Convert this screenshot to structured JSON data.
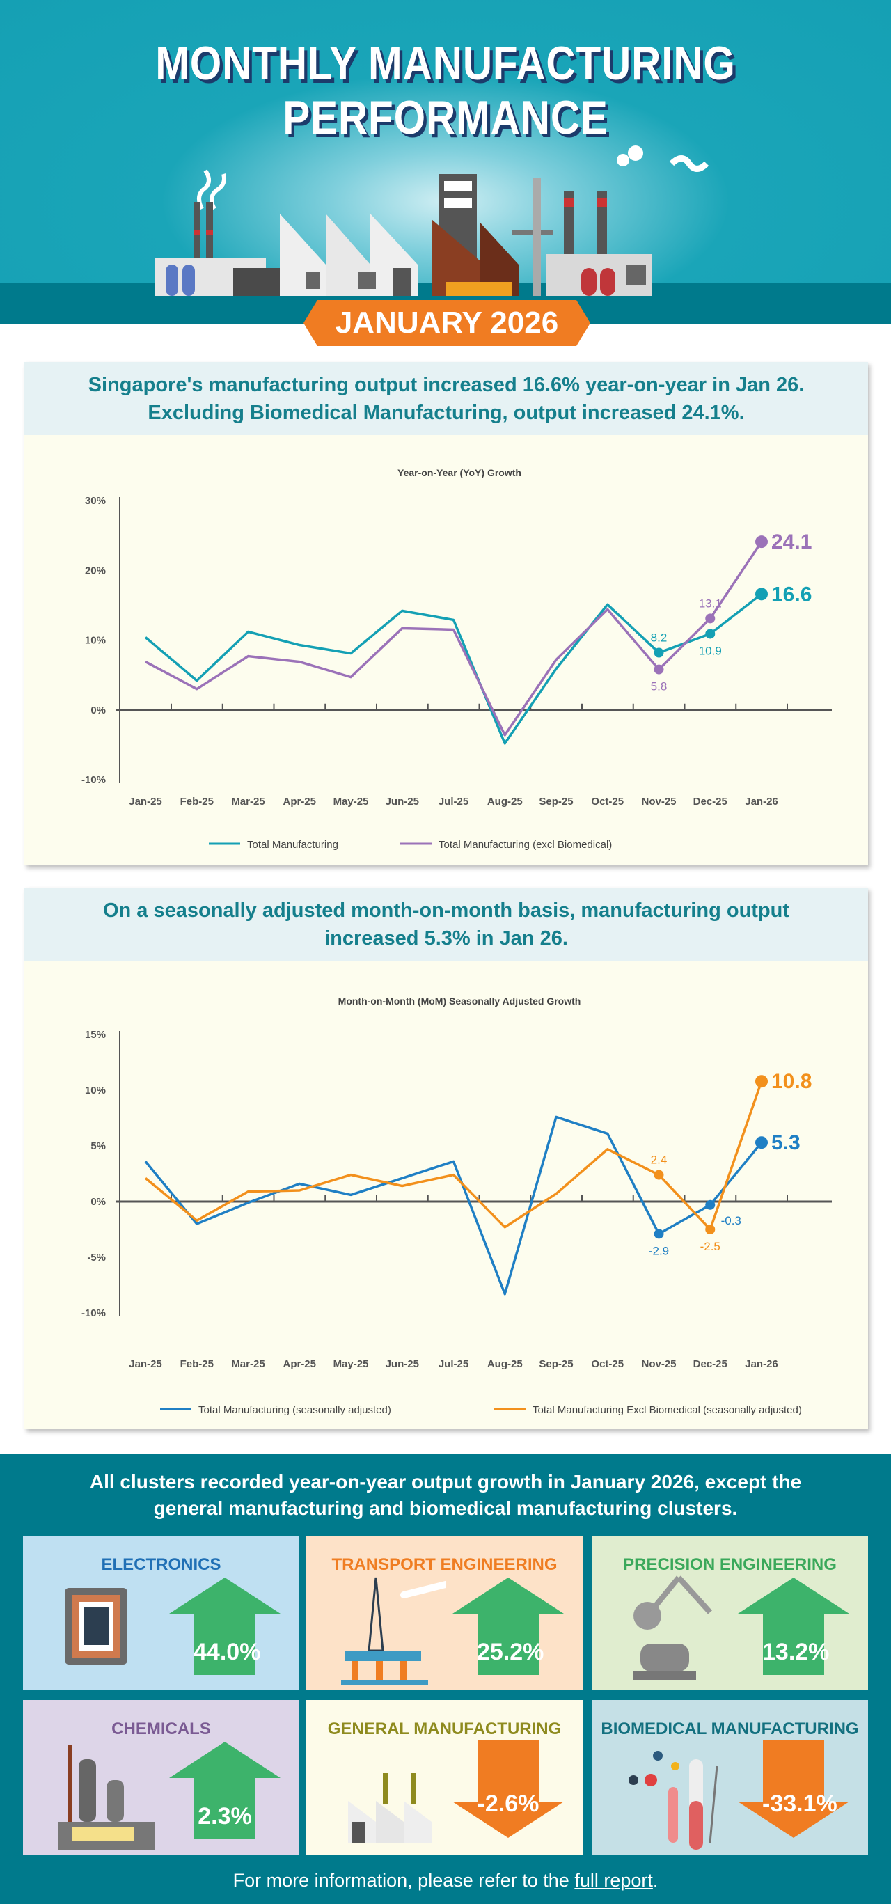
{
  "header": {
    "title_line1": "MONTHLY MANUFACTURING",
    "title_line2": "PERFORMANCE",
    "date_badge": "JANUARY 2026"
  },
  "panel1": {
    "headline1": "Singapore's manufacturing output increased 16.6% year-on-year in Jan 26.",
    "headline2": "Excluding Biomedical Manufacturing, output increased 24.1%."
  },
  "panel2": {
    "headline1": "On a seasonally adjusted month-on-month basis, manufacturing output",
    "headline2": "increased 5.3% in Jan 26."
  },
  "chart_data": [
    {
      "type": "line",
      "title": "Year-on-Year (YoY) Growth",
      "xlabel": "",
      "ylabel": "",
      "categories": [
        "Jan-25",
        "Feb-25",
        "Mar-25",
        "Apr-25",
        "May-25",
        "Jun-25",
        "Jul-25",
        "Aug-25",
        "Sep-25",
        "Oct-25",
        "Nov-25",
        "Dec-25",
        "Jan-26"
      ],
      "ylim": [
        -10,
        30
      ],
      "yticks": [
        30,
        20,
        10,
        0,
        -10
      ],
      "ytick_labels": [
        "30%",
        "20%",
        "10%",
        "0%",
        "-10%"
      ],
      "legend": "bottom",
      "grid": false,
      "series": [
        {
          "name": "Total Manufacturing",
          "color": "#14a0b4",
          "values": [
            10.4,
            4.2,
            11.2,
            9.3,
            8.1,
            14.2,
            12.9,
            -4.8,
            5.9,
            15.1,
            8.2,
            10.9,
            16.6
          ],
          "labels": {
            "10": "8.2",
            "11": "10.9",
            "12": "16.6"
          }
        },
        {
          "name": "Total Manufacturing (excl Biomedical)",
          "color": "#9b72b8",
          "values": [
            6.9,
            3.0,
            7.7,
            6.9,
            4.7,
            11.7,
            11.5,
            -3.6,
            7.2,
            14.4,
            5.8,
            13.1,
            24.1
          ],
          "labels": {
            "10": "5.8",
            "11": "13.1",
            "12": "24.1"
          }
        }
      ]
    },
    {
      "type": "line",
      "title": "Month-on-Month (MoM) Seasonally Adjusted Growth",
      "xlabel": "",
      "ylabel": "",
      "categories": [
        "Jan-25",
        "Feb-25",
        "Mar-25",
        "Apr-25",
        "May-25",
        "Jun-25",
        "Jul-25",
        "Aug-25",
        "Sep-25",
        "Oct-25",
        "Nov-25",
        "Dec-25",
        "Jan-26"
      ],
      "ylim": [
        -10,
        15
      ],
      "yticks": [
        15,
        10,
        5,
        0,
        -5,
        -10
      ],
      "ytick_labels": [
        "15%",
        "10%",
        "5%",
        "0%",
        "-5%",
        "-10%"
      ],
      "legend": "bottom",
      "grid": false,
      "series": [
        {
          "name": "Total Manufacturing (seasonally adjusted)",
          "color": "#1f7fc4",
          "values": [
            3.6,
            -2.0,
            -0.1,
            1.6,
            0.6,
            2.1,
            3.6,
            -8.3,
            7.6,
            6.1,
            -2.9,
            -0.3,
            5.3
          ],
          "labels": {
            "10": "-2.9",
            "11": "-0.3",
            "12": "5.3"
          }
        },
        {
          "name": "Total Manufacturing Excl Biomedical (seasonally adjusted)",
          "color": "#f2901c",
          "values": [
            2.1,
            -1.7,
            0.9,
            1.0,
            2.4,
            1.4,
            2.4,
            -2.3,
            0.7,
            4.7,
            2.4,
            -2.5,
            10.8
          ],
          "labels": {
            "10": "2.4",
            "11": "-2.5",
            "12": "10.8"
          }
        }
      ]
    }
  ],
  "clusters": {
    "headline1": "All clusters recorded year-on-year output growth in January 2026, except the",
    "headline2": "general manufacturing and biomedical manufacturing clusters.",
    "items": [
      {
        "name": "ELECTRONICS",
        "value": "44.0%",
        "direction": "up",
        "title_color": "#1f6fb5",
        "bg": "#bfe0f2",
        "icon": "microchip-icon"
      },
      {
        "name": "TRANSPORT ENGINEERING",
        "value": "25.2%",
        "direction": "up",
        "title_color": "#ef7d22",
        "bg": "#fde2c8",
        "icon": "oil-rig-airplane-icon"
      },
      {
        "name": "PRECISION ENGINEERING",
        "value": "13.2%",
        "direction": "up",
        "title_color": "#3aa85a",
        "bg": "#e0edcf",
        "icon": "robotic-arm-icon"
      },
      {
        "name": "CHEMICALS",
        "value": "2.3%",
        "direction": "up",
        "title_color": "#7a5a93",
        "bg": "#ddd5e8",
        "icon": "chemical-plant-icon"
      },
      {
        "name": "GENERAL MANUFACTURING",
        "value": "-2.6%",
        "direction": "down",
        "title_color": "#8e8a1e",
        "bg": "#fdfbe9",
        "icon": "factory-icon"
      },
      {
        "name": "BIOMEDICAL MANUFACTURING",
        "value": "-33.1%",
        "direction": "down",
        "title_color": "#13707f",
        "bg": "#c5e0e6",
        "icon": "lab-equipment-icon"
      }
    ],
    "up_color": "#3db36b",
    "down_color": "#f07c22"
  },
  "footer": {
    "text": "For more information, please refer to the ",
    "link": "full report",
    "end": "."
  }
}
